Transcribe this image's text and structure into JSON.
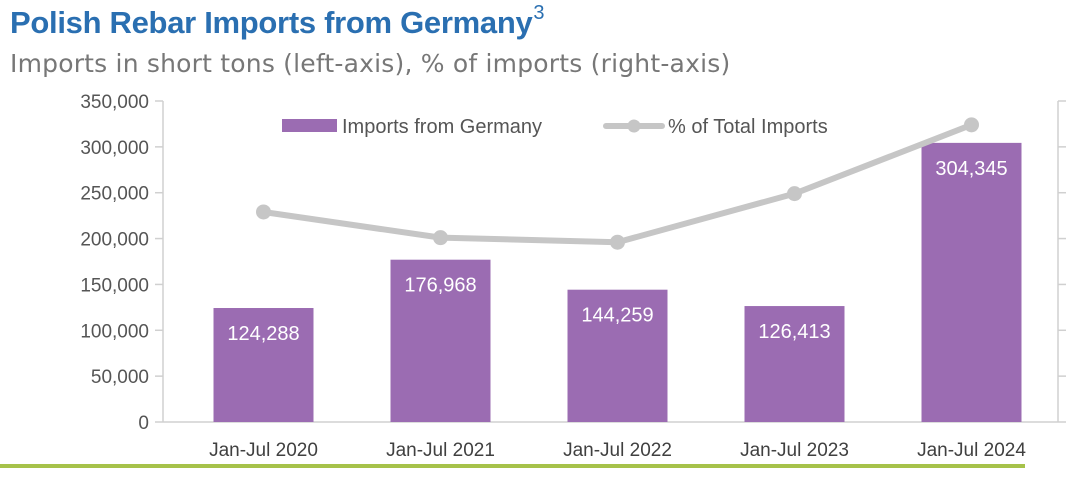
{
  "header": {
    "title": "Polish Rebar Imports from Germany",
    "title_superscript": "3",
    "subtitle": "Imports in short tons (left-axis), % of imports (right-axis)"
  },
  "colors": {
    "title": "#2a6fb1",
    "bars": "#9b6cb2",
    "line": "#c6c6c6",
    "underline": "#a6c24a",
    "axis": "#d0d0d0"
  },
  "chart_data": {
    "type": "bar",
    "title": "Polish Rebar Imports from Germany",
    "subtitle": "Imports in short tons (left-axis), % of imports (right-axis)",
    "categories": [
      "Jan-Jul 2020",
      "Jan-Jul 2021",
      "Jan-Jul 2022",
      "Jan-Jul 2023",
      "Jan-Jul 2024"
    ],
    "series": [
      {
        "name": "Imports from Germany",
        "type": "bar",
        "axis": "left",
        "values": [
          124288,
          176968,
          144259,
          126413,
          304345
        ],
        "labels": [
          "124,288",
          "176,968",
          "144,259",
          "126,413",
          "304,345"
        ]
      },
      {
        "name": "% of Total Imports",
        "type": "line",
        "axis": "right",
        "values": [
          229000,
          201000,
          196000,
          249000,
          324000
        ],
        "note_values_in_left_axis_units": true
      }
    ],
    "y_left": {
      "ylim": [
        0,
        350000
      ],
      "ticks": [
        0,
        50000,
        100000,
        150000,
        200000,
        250000,
        300000,
        350000
      ],
      "tick_labels": [
        "0",
        "50,000",
        "100,000",
        "150,000",
        "200,000",
        "250,000",
        "300,000",
        "350,000"
      ]
    },
    "y_right": {
      "tick_labels_visible": false
    },
    "legend": {
      "placement": "top-center",
      "entries": [
        "Imports from Germany",
        "% of Total Imports"
      ]
    },
    "grid": false
  }
}
